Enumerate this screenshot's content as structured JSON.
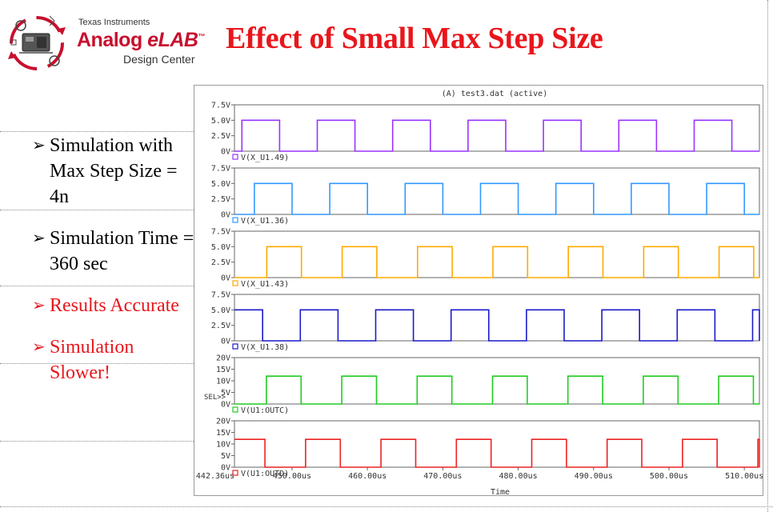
{
  "header": {
    "logo_company": "Texas Instruments",
    "logo_brand": "Analog",
    "logo_brand_suffix": "eLAB",
    "logo_tm": "™",
    "logo_subtitle": "Design Center",
    "title": "Effect of Small Max Step Size"
  },
  "bullets": [
    {
      "text": "Simulation with Max Step Size = 4n",
      "color": "#000000"
    },
    {
      "text": "Simulation Time = 360 sec",
      "color": "#000000"
    },
    {
      "text": "Results Accurate",
      "color": "#e8161c"
    },
    {
      "text": "Simulation Slower!",
      "color": "#e8161c"
    }
  ],
  "plot_window": {
    "title": "(A) test3.dat (active)",
    "xlabel": "Time",
    "sel_marker": "SEL>>",
    "x_start_label": "442.36us",
    "x_tick_labels": [
      "450.00us",
      "460.00us",
      "470.00us",
      "480.00us",
      "490.00us",
      "500.00us",
      "510.00us"
    ]
  },
  "chart_data": {
    "type": "line",
    "x_range_us": [
      442.36,
      512.0
    ],
    "x_ticks_us": [
      450,
      460,
      470,
      480,
      490,
      500,
      510
    ],
    "period_us": 10,
    "panels": [
      {
        "trace": "V(X_U1.49)",
        "color": "#9933ff",
        "y_ticks": [
          "7.5V",
          "5.0V",
          "2.5V",
          "0V"
        ],
        "ylim": [
          0,
          7.5
        ],
        "high": 5,
        "phase_us": 443.35,
        "width_us": 5.0
      },
      {
        "trace": "V(X_U1.36)",
        "color": "#3399ff",
        "y_ticks": [
          "7.5V",
          "5.0V",
          "2.5V",
          "0V"
        ],
        "ylim": [
          0,
          7.5
        ],
        "high": 5,
        "phase_us": 445.0,
        "width_us": 5.0
      },
      {
        "trace": "V(X_U1.43)",
        "color": "#ffaa00",
        "y_ticks": [
          "7.5V",
          "5.0V",
          "2.5V",
          "0V"
        ],
        "ylim": [
          0,
          7.5
        ],
        "high": 5,
        "phase_us": 446.65,
        "width_us": 4.6
      },
      {
        "trace": "V(X_U1.38)",
        "color": "#1a1acc",
        "y_ticks": [
          "7.5V",
          "5.0V",
          "2.5V",
          "0V"
        ],
        "ylim": [
          0,
          7.5
        ],
        "high": 5,
        "phase_us": 441.1,
        "width_us": 5.0,
        "inverted_high_at_start": true
      },
      {
        "trace": "V(U1:OUTC)",
        "color": "#22cc22",
        "y_ticks": [
          "20V",
          "15V",
          "10V",
          "5V",
          "0V"
        ],
        "ylim": [
          0,
          20
        ],
        "high": 12,
        "phase_us": 446.6,
        "width_us": 4.6
      },
      {
        "trace": "V(U1:OUTD)",
        "color": "#ee2222",
        "y_ticks": [
          "20V",
          "15V",
          "10V",
          "5V",
          "0V"
        ],
        "ylim": [
          0,
          20
        ],
        "high": 12,
        "phase_us": 441.8,
        "width_us": 4.6,
        "high_at_start": true
      }
    ]
  }
}
